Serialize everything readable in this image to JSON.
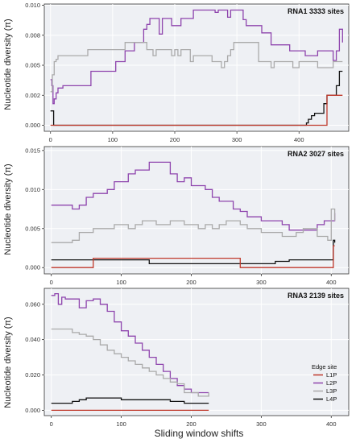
{
  "figure": {
    "xlabel": "Sliding window shifts",
    "ylabel": "Nucleotide diversity (π)"
  },
  "legend": {
    "title": "Edge site",
    "entries": [
      {
        "name": "L1P",
        "color": "#c0392b"
      },
      {
        "name": "L2P",
        "color": "#8e44ad"
      },
      {
        "name": "L3P",
        "color": "#aaaaaa"
      },
      {
        "name": "L4P",
        "color": "#111111"
      }
    ]
  },
  "chart_data": [
    {
      "type": "line",
      "title": "RNA1 3333 sites",
      "xlabel": "",
      "ylabel": "Nucleotide diversity (π)",
      "xlim": [
        -10,
        480
      ],
      "ylim": [
        -0.0005,
        0.0101
      ],
      "xticks": [
        0,
        100,
        200,
        300,
        400
      ],
      "xtick_labels": [
        "0",
        "100",
        "200",
        "300",
        "400"
      ],
      "yticks": [
        0,
        0.0025,
        0.005,
        0.0075,
        0.01
      ],
      "ytick_labels": [
        "0.000",
        "0.002",
        "0.005",
        "0.008",
        "0.010"
      ],
      "grid": true,
      "series": [
        {
          "name": "L2P",
          "color": "#8e44ad",
          "x": [
            0,
            2,
            4,
            6,
            9,
            12,
            15,
            20,
            40,
            60,
            65,
            100,
            105,
            115,
            120,
            130,
            135,
            140,
            150,
            155,
            160,
            170,
            175,
            180,
            190,
            195,
            210,
            220,
            230,
            245,
            255,
            265,
            270,
            275,
            285,
            290,
            295,
            300,
            310,
            315,
            325,
            340,
            345,
            355,
            375,
            385,
            390,
            400,
            410,
            420,
            430,
            450,
            455,
            460,
            465,
            470
          ],
          "y": [
            0.0038,
            0.0033,
            0.0018,
            0.0022,
            0.0027,
            0.0031,
            0.0031,
            0.0033,
            0.0033,
            0.0033,
            0.0045,
            0.0045,
            0.0053,
            0.0053,
            0.0062,
            0.0062,
            0.0069,
            0.0069,
            0.008,
            0.0084,
            0.0089,
            0.0089,
            0.0076,
            0.0089,
            0.0089,
            0.0083,
            0.0089,
            0.0089,
            0.0096,
            0.0096,
            0.0096,
            0.0094,
            0.0096,
            0.0096,
            0.009,
            0.0096,
            0.0096,
            0.0096,
            0.0088,
            0.0083,
            0.0083,
            0.0077,
            0.0077,
            0.0067,
            0.0067,
            0.0062,
            0.0062,
            0.0062,
            0.0058,
            0.0058,
            0.0062,
            0.0062,
            0.0054,
            0.0062,
            0.008,
            0.0069
          ]
        },
        {
          "name": "L3P",
          "color": "#aaaaaa",
          "x": [
            0,
            3,
            6,
            9,
            12,
            15,
            30,
            55,
            60,
            65,
            100,
            105,
            115,
            120,
            150,
            155,
            160,
            165,
            170,
            180,
            190,
            195,
            200,
            205,
            210,
            215,
            225,
            230,
            240,
            260,
            270,
            275,
            280,
            285,
            290,
            295,
            330,
            335,
            345,
            355,
            360,
            385,
            390,
            400,
            410,
            430,
            450,
            455,
            465,
            470
          ],
          "y": [
            0.0028,
            0.0042,
            0.0053,
            0.0055,
            0.0058,
            0.0058,
            0.0058,
            0.0058,
            0.0063,
            0.0063,
            0.0063,
            0.0063,
            0.0063,
            0.0069,
            0.0069,
            0.0063,
            0.0063,
            0.0058,
            0.0063,
            0.0063,
            0.0063,
            0.0058,
            0.0063,
            0.0058,
            0.0063,
            0.0063,
            0.0053,
            0.0058,
            0.0058,
            0.0053,
            0.0053,
            0.0048,
            0.0053,
            0.0058,
            0.0063,
            0.0069,
            0.0069,
            0.0053,
            0.0053,
            0.0048,
            0.0053,
            0.0053,
            0.0048,
            0.0053,
            0.0053,
            0.0048,
            0.0048,
            0.0053,
            0.0053,
            0.0053
          ]
        },
        {
          "name": "L4P",
          "color": "#111111",
          "x": [
            0,
            5,
            410,
            412,
            415,
            420,
            425,
            430,
            440,
            445,
            450,
            455,
            460,
            465,
            470
          ],
          "y": [
            0.0012,
            0.0,
            0.0,
            0.0002,
            0.0005,
            0.0008,
            0.001,
            0.001,
            0.0018,
            0.0025,
            0.0025,
            0.0025,
            0.0033,
            0.0045,
            0.0045
          ]
        },
        {
          "name": "L1P",
          "color": "#c0392b",
          "x": [
            0,
            440,
            445,
            470
          ],
          "y": [
            0.0,
            0.0,
            0.0025,
            0.0025
          ]
        }
      ]
    },
    {
      "type": "line",
      "title": "RNA2 3027 sites",
      "xlabel": "",
      "ylabel": "Nucleotide diversity (π)",
      "xlim": [
        -10,
        425
      ],
      "ylim": [
        -0.0008,
        0.0155
      ],
      "xticks": [
        0,
        100,
        200,
        300,
        400
      ],
      "xtick_labels": [
        "0",
        "100",
        "200",
        "300",
        "400"
      ],
      "yticks": [
        0,
        0.005,
        0.01,
        0.015
      ],
      "ytick_labels": [
        "0.000",
        "0.005",
        "0.010",
        "0.015"
      ],
      "grid": true,
      "series": [
        {
          "name": "L2P",
          "color": "#8e44ad",
          "x": [
            0,
            20,
            30,
            40,
            50,
            60,
            70,
            80,
            90,
            100,
            110,
            120,
            130,
            140,
            150,
            160,
            170,
            180,
            190,
            200,
            210,
            220,
            230,
            240,
            250,
            260,
            270,
            280,
            290,
            300,
            310,
            320,
            330,
            340,
            350,
            360,
            370,
            380,
            390,
            400,
            405
          ],
          "y": [
            0.008,
            0.008,
            0.0075,
            0.008,
            0.009,
            0.0095,
            0.0095,
            0.01,
            0.011,
            0.011,
            0.012,
            0.0125,
            0.0125,
            0.0135,
            0.0135,
            0.0135,
            0.012,
            0.011,
            0.0115,
            0.0105,
            0.0105,
            0.01,
            0.009,
            0.0085,
            0.0085,
            0.0075,
            0.0072,
            0.0065,
            0.0065,
            0.006,
            0.006,
            0.006,
            0.0055,
            0.0048,
            0.0048,
            0.0048,
            0.0048,
            0.0055,
            0.006,
            0.006,
            0.007
          ]
        },
        {
          "name": "L3P",
          "color": "#aaaaaa",
          "x": [
            0,
            10,
            20,
            30,
            40,
            50,
            60,
            70,
            80,
            90,
            100,
            110,
            120,
            130,
            140,
            150,
            160,
            170,
            180,
            190,
            200,
            210,
            220,
            230,
            240,
            250,
            260,
            270,
            280,
            290,
            300,
            310,
            320,
            330,
            340,
            350,
            360,
            370,
            380,
            390,
            395,
            400,
            405
          ],
          "y": [
            0.0032,
            0.0032,
            0.0032,
            0.0035,
            0.0045,
            0.0045,
            0.005,
            0.005,
            0.005,
            0.0055,
            0.0055,
            0.005,
            0.0055,
            0.006,
            0.006,
            0.0055,
            0.0055,
            0.006,
            0.006,
            0.0055,
            0.0055,
            0.005,
            0.0055,
            0.005,
            0.0055,
            0.006,
            0.006,
            0.0055,
            0.005,
            0.005,
            0.0045,
            0.0045,
            0.0045,
            0.004,
            0.004,
            0.0045,
            0.005,
            0.005,
            0.004,
            0.004,
            0.0035,
            0.0075,
            0.006
          ]
        },
        {
          "name": "L4P",
          "color": "#111111",
          "x": [
            0,
            60,
            120,
            140,
            180,
            220,
            260,
            300,
            320,
            340,
            360,
            380,
            400,
            403,
            405
          ],
          "y": [
            0.001,
            0.001,
            0.001,
            0.0005,
            0.0005,
            0.0005,
            0.0005,
            0.0005,
            0.0008,
            0.001,
            0.001,
            0.001,
            0.001,
            0.0035,
            0.0032
          ]
        },
        {
          "name": "L1P",
          "color": "#c0392b",
          "x": [
            0,
            55,
            60,
            265,
            270,
            400,
            403,
            405
          ],
          "y": [
            0.0,
            0.0,
            0.0012,
            0.0012,
            0.0,
            0.0,
            0.0028,
            0.0028
          ]
        }
      ]
    },
    {
      "type": "line",
      "title": "RNA3 2139 sites",
      "xlabel": "Sliding window shifts",
      "ylabel": "Nucleotide diversity (π)",
      "xlim": [
        -10,
        425
      ],
      "ylim": [
        -0.003,
        0.069
      ],
      "xticks": [
        0,
        100,
        200,
        300,
        400
      ],
      "xtick_labels": [
        "0",
        "100",
        "200",
        "300",
        "400"
      ],
      "yticks": [
        0,
        0.02,
        0.04,
        0.06
      ],
      "ytick_labels": [
        "0.000",
        "0.020",
        "0.040",
        "0.060"
      ],
      "grid": true,
      "series": [
        {
          "name": "L2P",
          "color": "#8e44ad",
          "x": [
            0,
            5,
            10,
            15,
            20,
            30,
            40,
            50,
            60,
            70,
            80,
            90,
            100,
            110,
            120,
            130,
            140,
            150,
            160,
            170,
            180,
            190,
            200,
            210,
            220,
            225
          ],
          "y": [
            0.065,
            0.066,
            0.06,
            0.064,
            0.063,
            0.063,
            0.058,
            0.062,
            0.063,
            0.06,
            0.056,
            0.05,
            0.045,
            0.042,
            0.038,
            0.034,
            0.03,
            0.026,
            0.022,
            0.018,
            0.014,
            0.012,
            0.01,
            0.01,
            0.01,
            0.01
          ]
        },
        {
          "name": "L3P",
          "color": "#aaaaaa",
          "x": [
            0,
            20,
            30,
            40,
            50,
            60,
            70,
            80,
            90,
            100,
            110,
            120,
            130,
            140,
            150,
            160,
            170,
            180,
            190,
            200,
            210,
            220,
            225
          ],
          "y": [
            0.046,
            0.046,
            0.044,
            0.043,
            0.042,
            0.04,
            0.037,
            0.034,
            0.032,
            0.03,
            0.028,
            0.026,
            0.024,
            0.022,
            0.02,
            0.018,
            0.016,
            0.015,
            0.01,
            0.01,
            0.008,
            0.008,
            0.01
          ]
        },
        {
          "name": "L4P",
          "color": "#111111",
          "x": [
            0,
            20,
            30,
            40,
            50,
            80,
            100,
            120,
            150,
            170,
            190,
            200,
            220,
            225
          ],
          "y": [
            0.004,
            0.004,
            0.005,
            0.006,
            0.007,
            0.007,
            0.006,
            0.006,
            0.006,
            0.005,
            0.004,
            0.004,
            0.004,
            0.004
          ]
        },
        {
          "name": "L1P",
          "color": "#c0392b",
          "x": [
            0,
            225
          ],
          "y": [
            0.0,
            0.0
          ]
        }
      ]
    }
  ]
}
